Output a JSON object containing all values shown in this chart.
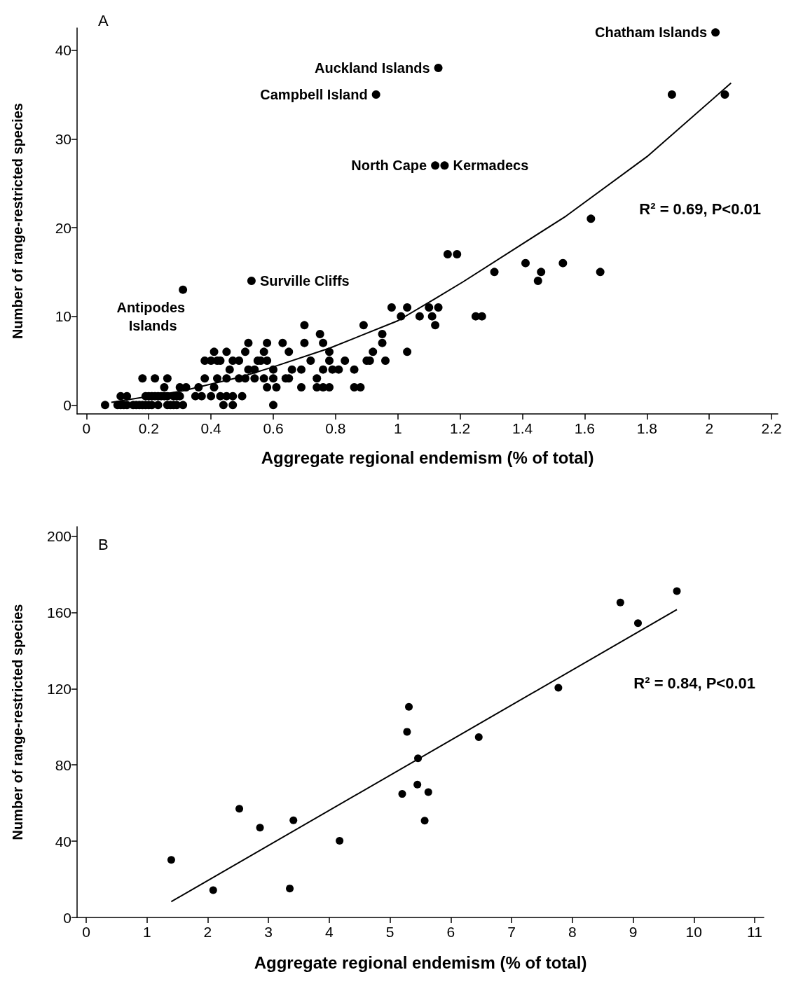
{
  "chart_data": [
    {
      "type": "scatter",
      "xlabel": "Aggregate regional endemism (% of total)",
      "ylabel": "Number of range-restricted species",
      "xlim": [
        -0.03,
        2.22
      ],
      "ylim": [
        -1,
        42.5
      ],
      "xticks": [
        0,
        0.2,
        0.4,
        0.6,
        0.8,
        1,
        1.2,
        1.4,
        1.6,
        1.8,
        2,
        2.2
      ],
      "yticks": [
        0,
        10,
        20,
        30,
        40
      ],
      "grid": false,
      "series": [
        {
          "type": "scatter",
          "marker": "circle",
          "color": "#000000",
          "x": [
            0.06,
            0.1,
            0.11,
            0.12,
            0.13,
            0.15,
            0.16,
            0.17,
            0.18,
            0.19,
            0.2,
            0.21,
            0.23,
            0.26,
            0.27,
            0.28,
            0.29,
            0.31,
            0.44,
            0.47,
            0.6,
            0.11,
            0.13,
            0.19,
            0.2,
            0.21,
            0.22,
            0.23,
            0.24,
            0.25,
            0.26,
            0.28,
            0.29,
            0.3,
            0.35,
            0.37,
            0.4,
            0.43,
            0.45,
            0.47,
            0.5,
            0.25,
            0.3,
            0.32,
            0.36,
            0.41,
            0.58,
            0.61,
            0.69,
            0.74,
            0.76,
            0.78,
            0.86,
            0.88,
            0.18,
            0.22,
            0.26,
            0.38,
            0.42,
            0.45,
            0.49,
            0.51,
            0.54,
            0.57,
            0.6,
            0.64,
            0.65,
            0.74,
            0.46,
            0.52,
            0.54,
            0.6,
            0.66,
            0.69,
            0.76,
            0.79,
            0.81,
            0.86,
            0.38,
            0.4,
            0.42,
            0.43,
            0.47,
            0.49,
            0.55,
            0.56,
            0.58,
            0.72,
            0.78,
            0.83,
            0.9,
            0.91,
            0.96,
            0.41,
            0.45,
            0.51,
            0.57,
            0.65,
            0.78,
            0.92,
            1.03,
            0.52,
            0.58,
            0.63,
            0.7,
            0.76,
            0.95,
            0.75,
            0.95,
            0.7,
            0.89,
            1.12,
            1.01,
            1.07,
            1.11,
            1.25,
            1.27,
            0.98,
            1.03,
            1.1,
            1.13,
            0.31,
            0.53,
            1.45,
            1.31,
            1.46,
            1.65,
            1.41,
            1.53,
            1.16,
            1.19,
            1.62,
            1.12,
            1.15,
            0.93,
            1.88,
            2.05,
            1.13,
            2.02
          ],
          "values": [
            0,
            0,
            0,
            0,
            0,
            0,
            0,
            0,
            0,
            0,
            0,
            0,
            0,
            0,
            0,
            0,
            0,
            0,
            0,
            0,
            0,
            1,
            1,
            1,
            1,
            1,
            1,
            1,
            1,
            1,
            1,
            1,
            1,
            1,
            1,
            1,
            1,
            1,
            1,
            1,
            1,
            2,
            2,
            2,
            2,
            2,
            2,
            2,
            2,
            2,
            2,
            2,
            2,
            2,
            3,
            3,
            3,
            3,
            3,
            3,
            3,
            3,
            3,
            3,
            3,
            3,
            3,
            3,
            4,
            4,
            4,
            4,
            4,
            4,
            4,
            4,
            4,
            4,
            5,
            5,
            5,
            5,
            5,
            5,
            5,
            5,
            5,
            5,
            5,
            5,
            5,
            5,
            5,
            6,
            6,
            6,
            6,
            6,
            6,
            6,
            6,
            7,
            7,
            7,
            7,
            7,
            7,
            8,
            8,
            9,
            9,
            9,
            10,
            10,
            10,
            10,
            10,
            11,
            11,
            11,
            11,
            13,
            14,
            14,
            15,
            15,
            15,
            16,
            16,
            17,
            17,
            21,
            27,
            27,
            35,
            35,
            35,
            38,
            42
          ]
        },
        {
          "type": "line",
          "marker": "none",
          "line_style": "solid",
          "color": "#000000",
          "x": [
            0.08,
            0.31,
            0.5,
            0.6,
            0.78,
            1.0,
            1.12,
            1.21,
            1.54,
            1.8,
            2.07
          ],
          "values": [
            0.3,
            1.6,
            3.2,
            4.3,
            6.4,
            9.5,
            12,
            13.9,
            21.3,
            28,
            36.3
          ]
        }
      ],
      "annotations": [
        {
          "text": "Chatham Islands",
          "x": 2.02,
          "y": 42
        },
        {
          "text": "Auckland Islands",
          "x": 1.13,
          "y": 38
        },
        {
          "text": "Campbell Island",
          "x": 0.93,
          "y": 35
        },
        {
          "text": "North Cape",
          "x": 1.12,
          "y": 27
        },
        {
          "text": "Kermadecs",
          "x": 1.15,
          "y": 27
        },
        {
          "text": "Surville Cliffs",
          "x": 0.53,
          "y": 14
        },
        {
          "text": "Antipodes Islands",
          "x": 0.31,
          "y": 13
        },
        "A",
        "R² = 0.69, P<0.01"
      ]
    },
    {
      "type": "scatter",
      "xlabel": "Aggregate regional endemism (% of total)",
      "ylabel": "Number of range-restricted species",
      "xlim": [
        -0.15,
        11.15
      ],
      "ylim": [
        0,
        205
      ],
      "xticks": [
        0,
        1,
        2,
        3,
        4,
        5,
        6,
        7,
        8,
        9,
        10,
        11
      ],
      "yticks": [
        0,
        40,
        80,
        120,
        160,
        200
      ],
      "grid": false,
      "series": [
        {
          "type": "scatter",
          "marker": "circle",
          "color": "#000000",
          "x": [
            1.4,
            2.09,
            2.52,
            2.86,
            3.41,
            3.35,
            4.17,
            5.2,
            5.28,
            5.31,
            5.45,
            5.46,
            5.63,
            5.57,
            6.46,
            7.77,
            8.79,
            9.08,
            9.72
          ],
          "values": [
            30.2,
            14.3,
            57.0,
            47.1,
            51.0,
            15.2,
            40.2,
            64.8,
            97.4,
            110.5,
            69.7,
            83.5,
            65.8,
            50.8,
            94.6,
            120.5,
            165.2,
            154.4,
            171.2
          ]
        },
        {
          "type": "line",
          "marker": "none",
          "line_style": "solid",
          "color": "#000000",
          "x": [
            1.4,
            9.72
          ],
          "values": [
            8.3,
            161.5
          ]
        }
      ],
      "annotations": [
        "B",
        "R² = 0.84, P<0.01"
      ]
    }
  ]
}
